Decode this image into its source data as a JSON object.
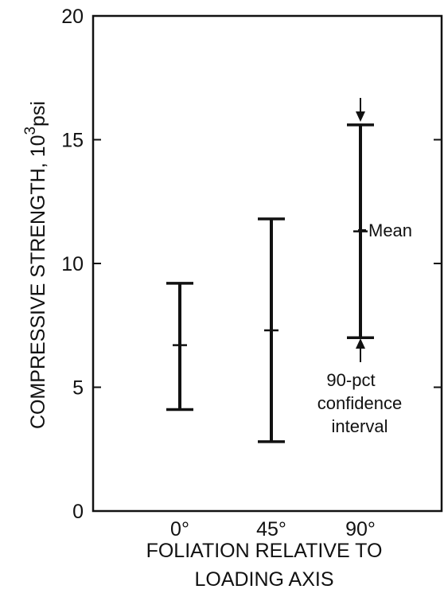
{
  "chart_data": {
    "type": "errorbar",
    "categories": [
      "0°",
      "45°",
      "90°"
    ],
    "series": [
      {
        "mean": [
          6.7,
          7.3,
          11.3
        ],
        "lower": [
          4.1,
          2.8,
          7.0
        ],
        "upper": [
          9.2,
          11.8,
          15.6
        ]
      }
    ],
    "ylim": [
      0,
      20
    ],
    "yticks": [
      "0",
      "5",
      "10",
      "15",
      "20"
    ],
    "ylabel": {
      "prefix": "COMPRESSIVE STRENGTH, 10",
      "sup": "3",
      "suffix": "psi"
    },
    "xlabel": [
      "FOLIATION RELATIVE TO",
      "LOADING AXIS"
    ],
    "annotations": {
      "mean": "Mean",
      "interval": [
        "90-pct",
        "confidence",
        "interval"
      ]
    },
    "grid": false,
    "legend": "none"
  }
}
